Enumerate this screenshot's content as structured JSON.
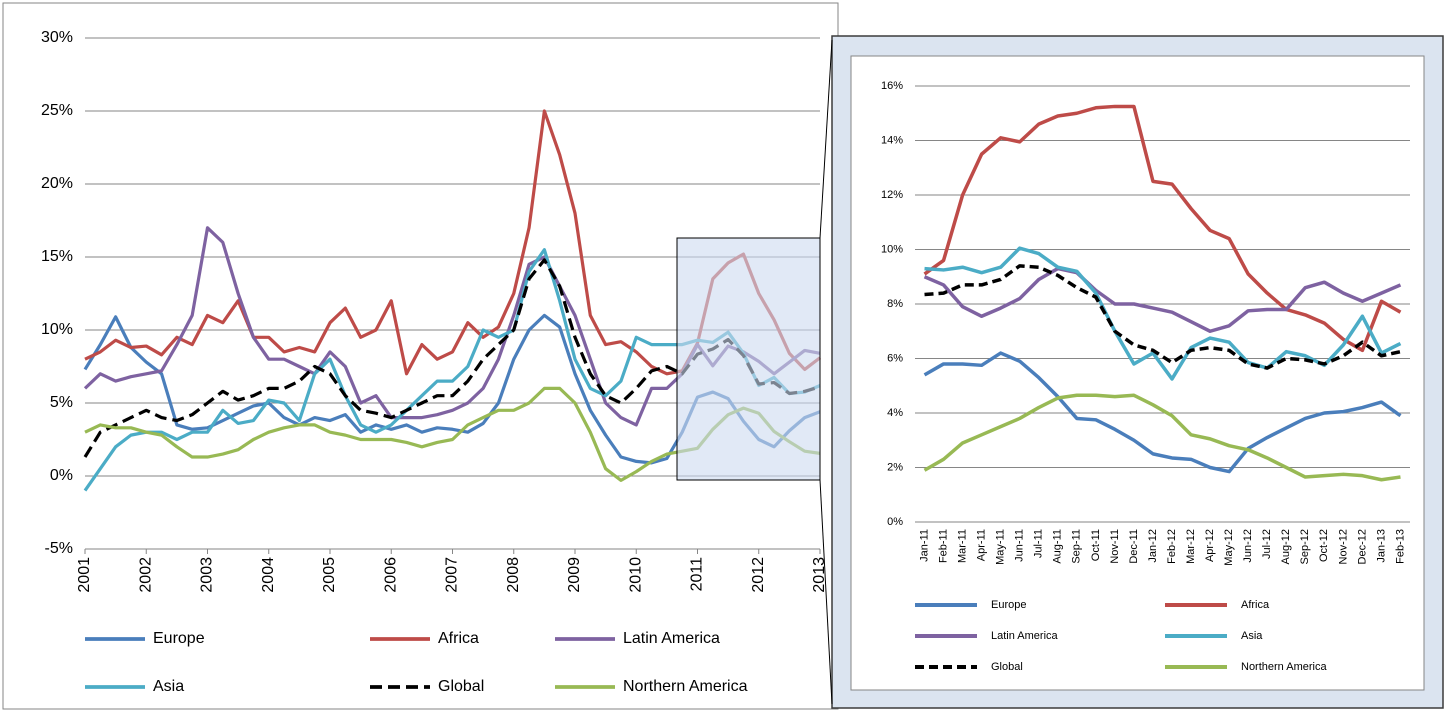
{
  "chart_data": [
    {
      "type": "line",
      "x": [
        2001,
        2001.25,
        2001.5,
        2001.75,
        2002,
        2002.25,
        2002.5,
        2002.75,
        2003,
        2003.25,
        2003.5,
        2003.75,
        2004,
        2004.25,
        2004.5,
        2004.75,
        2005,
        2005.25,
        2005.5,
        2005.75,
        2006,
        2006.25,
        2006.5,
        2006.75,
        2007,
        2007.25,
        2007.5,
        2007.75,
        2008,
        2008.25,
        2008.5,
        2008.75,
        2009,
        2009.25,
        2009.5,
        2009.75,
        2010,
        2010.25,
        2010.5,
        2010.75,
        2011,
        2011.25,
        2011.5,
        2011.75,
        2012,
        2012.25,
        2012.5,
        2012.75,
        2013
      ],
      "xlim": [
        2001,
        2013
      ],
      "xticks": [
        2001,
        2002,
        2003,
        2004,
        2005,
        2006,
        2007,
        2008,
        2009,
        2010,
        2011,
        2012,
        2013
      ],
      "ylim": [
        -5,
        30
      ],
      "yticks": [
        {
          "value": -5,
          "label": "-5%"
        },
        {
          "value": 0,
          "label": "0%"
        },
        {
          "value": 5,
          "label": "5%"
        },
        {
          "value": 10,
          "label": "10%"
        },
        {
          "value": 15,
          "label": "15%"
        },
        {
          "value": 20,
          "label": "20%"
        },
        {
          "value": 25,
          "label": "25%"
        },
        {
          "value": 30,
          "label": "30%"
        }
      ],
      "grid": true,
      "series": [
        {
          "name": "Europe",
          "color": "#4a7ebb",
          "values": [
            7.3,
            9,
            10.9,
            8.8,
            7.8,
            7,
            3.5,
            3.2,
            3.3,
            3.8,
            4.3,
            4.8,
            5,
            4,
            3.5,
            4,
            3.8,
            4.2,
            3,
            3.5,
            3.2,
            3.5,
            3,
            3.3,
            3.2,
            3,
            3.6,
            5,
            8,
            10,
            11,
            10.2,
            7,
            4.5,
            2.8,
            1.3,
            1,
            0.9,
            1.2,
            3,
            5.4,
            5.75,
            5.3,
            3.75,
            2.5,
            2,
            3.1,
            4,
            4.4
          ]
        },
        {
          "name": "Africa",
          "color": "#be4b48",
          "values": [
            8,
            8.5,
            9.3,
            8.8,
            8.9,
            8.3,
            9.5,
            9,
            11,
            10.5,
            12,
            9.5,
            9.5,
            8.5,
            8.8,
            8.5,
            10.5,
            11.5,
            9.5,
            10,
            12,
            7,
            9,
            8,
            8.5,
            10.5,
            9.5,
            10.2,
            12.5,
            17,
            25,
            22,
            18,
            11,
            9,
            9.2,
            8.5,
            7.5,
            7,
            7.2,
            9.1,
            13.5,
            14.6,
            15.2,
            12.5,
            10.7,
            8.4,
            7.3,
            8.1
          ]
        },
        {
          "name": "Latin America",
          "color": "#7e62a1",
          "values": [
            6,
            7,
            6.5,
            6.8,
            7,
            7.2,
            9,
            11,
            17,
            16,
            12.5,
            9.5,
            8,
            8,
            7.5,
            7,
            8.5,
            7.5,
            5,
            5.5,
            4,
            4,
            4,
            4.2,
            4.5,
            5,
            6,
            8,
            11,
            14.5,
            15,
            13,
            11,
            8,
            5,
            4,
            3.5,
            6,
            6,
            7,
            9,
            7.55,
            8.9,
            8.5,
            7.85,
            7,
            7.8,
            8.6,
            8.4
          ]
        },
        {
          "name": "Asia",
          "color": "#4bacc6",
          "values": [
            -1,
            0.5,
            2,
            2.8,
            3,
            3,
            2.5,
            3,
            3,
            4.5,
            3.6,
            3.8,
            5.2,
            5,
            3.8,
            7,
            8,
            5.5,
            3.5,
            3,
            3.5,
            4.5,
            5.5,
            6.5,
            6.5,
            7.5,
            10,
            9.5,
            10,
            14,
            15.5,
            12,
            8,
            6,
            5.5,
            6.5,
            9.5,
            9,
            9,
            9,
            9.3,
            9.15,
            9.85,
            8.4,
            6.2,
            6.75,
            5.65,
            5.75,
            6.2
          ]
        },
        {
          "name": "Global",
          "color": "#000000",
          "style": "dashed",
          "values": [
            1.3,
            3,
            3.5,
            4,
            4.5,
            4,
            3.8,
            4.2,
            5,
            5.8,
            5.2,
            5.5,
            6,
            6,
            6.5,
            7.5,
            7,
            5.5,
            4.5,
            4.3,
            4,
            4.5,
            5,
            5.5,
            5.5,
            6.5,
            8,
            9,
            10,
            13.5,
            14.8,
            13,
            9.5,
            7,
            5.5,
            5,
            6,
            7.2,
            7.5,
            7,
            8.35,
            8.7,
            9.35,
            8.25,
            6.3,
            6.4,
            5.65,
            5.8,
            6.1
          ]
        },
        {
          "name": "Northern America",
          "color": "#98b954",
          "values": [
            3,
            3.5,
            3.3,
            3.3,
            3,
            2.8,
            2,
            1.3,
            1.3,
            1.5,
            1.8,
            2.5,
            3,
            3.3,
            3.5,
            3.5,
            3,
            2.8,
            2.5,
            2.5,
            2.5,
            2.3,
            2,
            2.3,
            2.5,
            3.5,
            4,
            4.5,
            4.5,
            5,
            6,
            6,
            5,
            3,
            0.5,
            -0.3,
            0.3,
            1,
            1.5,
            1.7,
            1.9,
            3.2,
            4.2,
            4.65,
            4.3,
            3.05,
            2.35,
            1.7,
            1.55
          ]
        }
      ]
    },
    {
      "type": "line",
      "categories": [
        "Jan-11",
        "Feb-11",
        "Mar-11",
        "Apr-11",
        "May-11",
        "Jun-11",
        "Jul-11",
        "Aug-11",
        "Sep-11",
        "Oct-11",
        "Nov-11",
        "Dec-11",
        "Jan-12",
        "Feb-12",
        "Mar-12",
        "Apr-12",
        "May-12",
        "Jun-12",
        "Jul-12",
        "Aug-12",
        "Sep-12",
        "Oct-12",
        "Nov-12",
        "Dec-12",
        "Jan-13",
        "Feb-13"
      ],
      "ylim": [
        0,
        16
      ],
      "yticks": [
        {
          "value": 0,
          "label": "0%"
        },
        {
          "value": 2,
          "label": "2%"
        },
        {
          "value": 4,
          "label": "4%"
        },
        {
          "value": 6,
          "label": "6%"
        },
        {
          "value": 8,
          "label": "8%"
        },
        {
          "value": 10,
          "label": "10%"
        },
        {
          "value": 12,
          "label": "12%"
        },
        {
          "value": 14,
          "label": "14%"
        },
        {
          "value": 16,
          "label": "16%"
        }
      ],
      "grid": true,
      "series": [
        {
          "name": "Europe",
          "color": "#4a7ebb",
          "values": [
            5.4,
            5.8,
            5.8,
            5.75,
            6.2,
            5.9,
            5.3,
            4.6,
            3.8,
            3.75,
            3.4,
            3,
            2.5,
            2.35,
            2.3,
            2,
            1.85,
            2.7,
            3.1,
            3.45,
            3.8,
            4,
            4.05,
            4.2,
            4.4,
            3.9
          ]
        },
        {
          "name": "Africa",
          "color": "#be4b48",
          "values": [
            9.1,
            9.6,
            12,
            13.5,
            14.1,
            13.95,
            14.6,
            14.9,
            15,
            15.2,
            15.25,
            15.25,
            12.5,
            12.4,
            11.5,
            10.7,
            10.4,
            9.1,
            8.4,
            7.8,
            7.6,
            7.3,
            6.7,
            6.3,
            8.1,
            7.7
          ]
        },
        {
          "name": "Latin America",
          "color": "#7e62a1",
          "values": [
            9,
            8.7,
            7.9,
            7.55,
            7.85,
            8.2,
            8.9,
            9.3,
            9.15,
            8.5,
            8,
            8,
            7.85,
            7.7,
            7.35,
            7,
            7.2,
            7.75,
            7.8,
            7.8,
            8.6,
            8.8,
            8.4,
            8.1,
            8.4,
            8.7
          ]
        },
        {
          "name": "Asia",
          "color": "#4bacc6",
          "values": [
            9.3,
            9.25,
            9.35,
            9.15,
            9.35,
            10.05,
            9.85,
            9.35,
            9.2,
            8.4,
            7,
            5.8,
            6.2,
            5.25,
            6.4,
            6.75,
            6.6,
            5.85,
            5.65,
            6.25,
            6.1,
            5.75,
            6.5,
            7.55,
            6.2,
            6.55
          ]
        },
        {
          "name": "Global",
          "color": "#000000",
          "style": "dashed",
          "values": [
            8.35,
            8.4,
            8.7,
            8.7,
            8.9,
            9.4,
            9.35,
            9.05,
            8.6,
            8.25,
            7,
            6.5,
            6.3,
            5.85,
            6.3,
            6.4,
            6.3,
            5.8,
            5.65,
            6,
            5.95,
            5.8,
            6.1,
            6.6,
            6.1,
            6.25
          ]
        },
        {
          "name": "Northern America",
          "color": "#98b954",
          "values": [
            1.9,
            2.3,
            2.9,
            3.2,
            3.5,
            3.8,
            4.2,
            4.55,
            4.65,
            4.65,
            4.6,
            4.65,
            4.3,
            3.9,
            3.2,
            3.05,
            2.8,
            2.65,
            2.35,
            2,
            1.65,
            1.7,
            1.75,
            1.7,
            1.55,
            1.65
          ]
        }
      ]
    }
  ]
}
